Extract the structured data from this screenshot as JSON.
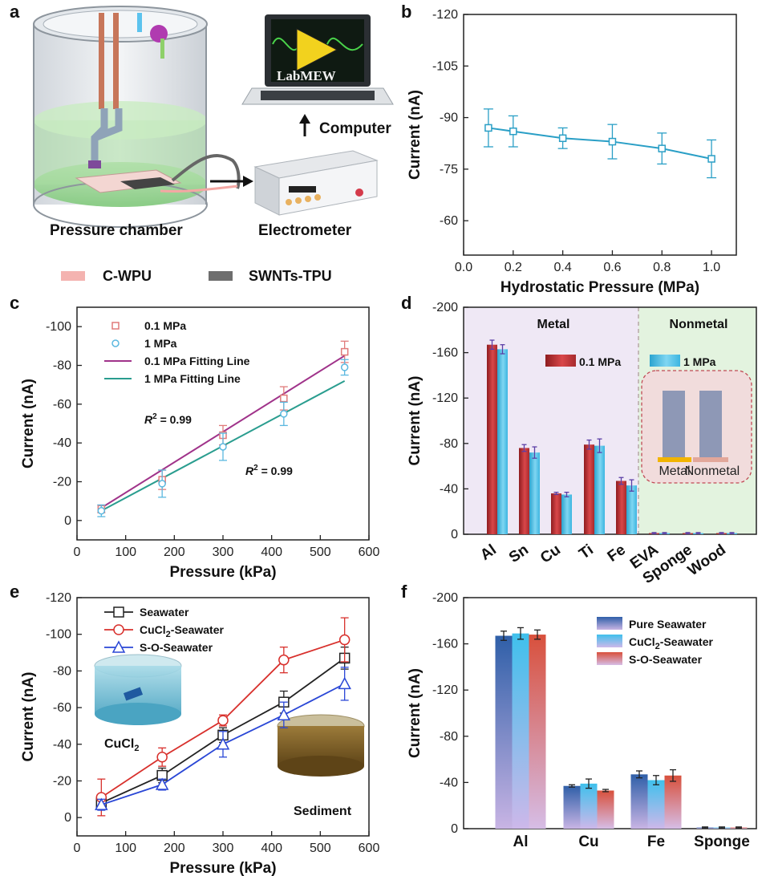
{
  "panel_letters": {
    "a": "a",
    "b": "b",
    "c": "c",
    "d": "d",
    "e": "e",
    "f": "f"
  },
  "schematic": {
    "pressure_chamber": "Pressure chamber",
    "electrometer": "Electrometer",
    "computer": "Computer",
    "labview_logo": "LabMEW",
    "legend": [
      {
        "label": "C-WPU",
        "color": "#f4b3b0"
      },
      {
        "label": "SWNTs-TPU",
        "color": "#6e6e6e"
      }
    ]
  },
  "chart_data": [
    {
      "id": "b",
      "type": "line",
      "xlabel": "Hydrostatic Pressure (MPa)",
      "ylabel": "Current (nA)",
      "xlim": [
        0,
        1.1
      ],
      "ylim": [
        -120,
        -50
      ],
      "xticks": [
        "0.0",
        "0.2",
        "0.4",
        "0.6",
        "0.8",
        "1.0"
      ],
      "yticks": [
        "-120",
        "-105",
        "-90",
        "-75",
        "-60"
      ],
      "color": "#2a9fc6",
      "x": [
        0.1,
        0.2,
        0.4,
        0.6,
        0.8,
        1.0
      ],
      "y": [
        -87,
        -86,
        -84,
        -83,
        -81,
        -78
      ],
      "err": [
        5.5,
        4.5,
        3.0,
        5.0,
        4.5,
        5.5
      ]
    },
    {
      "id": "c",
      "type": "scatter",
      "xlabel": "Pressure (kPa)",
      "ylabel": "Current (nA)",
      "xlim": [
        0,
        600
      ],
      "ylim": [
        -110,
        10
      ],
      "xticks": [
        "0",
        "100",
        "200",
        "300",
        "400",
        "500",
        "600"
      ],
      "yticks": [
        "-100",
        "-80",
        "-60",
        "-40",
        "-20",
        "0"
      ],
      "series": [
        {
          "name": "0.1 MPa",
          "marker": "square",
          "color": "#e07a7a",
          "x": [
            50,
            175,
            300,
            425,
            550
          ],
          "y": [
            -6,
            -21,
            -44,
            -63,
            -87
          ],
          "err": [
            2,
            5,
            5,
            6,
            5.5
          ]
        },
        {
          "name": "1 MPa",
          "marker": "circle",
          "color": "#5bb8df",
          "x": [
            50,
            175,
            300,
            425,
            550
          ],
          "y": [
            -5,
            -19,
            -38,
            -55,
            -79
          ],
          "err": [
            3,
            7,
            7,
            6,
            4
          ]
        }
      ],
      "fits": [
        {
          "name": "0.1 MPa Fitting Line",
          "color": "#a0338a",
          "x": [
            50,
            550
          ],
          "y": [
            -6.5,
            -85
          ]
        },
        {
          "name": "1 MPa Fitting Line",
          "color": "#2a9d8f",
          "x": [
            50,
            550
          ],
          "y": [
            -5,
            -72
          ]
        }
      ],
      "annotations": [
        {
          "label": "R",
          "sup": "2",
          "rest": " = 0.99",
          "color": "#a0338a"
        },
        {
          "label": "R",
          "sup": "2",
          "rest": " = 0.99",
          "color": "#2a9d8f"
        }
      ]
    },
    {
      "id": "d",
      "type": "bar",
      "xlabel": "",
      "ylabel": "Current (nA)",
      "ylim": [
        -200,
        0
      ],
      "yticks": [
        "-200",
        "-160",
        "-120",
        "-80",
        "-40",
        "0"
      ],
      "categories": [
        "Al",
        "Sn",
        "Cu",
        "Ti",
        "Fe",
        "EVA",
        "Sponge",
        "Wood"
      ],
      "groups": [
        {
          "label": "Metal"
        },
        {
          "label": "Nonmetal"
        }
      ],
      "series": [
        {
          "name": "0.1 MPa",
          "color": "#c0393b",
          "values": [
            -167,
            -76,
            -36,
            -79,
            -47,
            -1,
            -1,
            -1
          ],
          "err": [
            4,
            3,
            1,
            4,
            3,
            0.5,
            0.5,
            0.5
          ]
        },
        {
          "name": "1 MPa",
          "color": "#3fb8e0",
          "values": [
            -163,
            -72,
            -35,
            -78,
            -43,
            -1,
            -1,
            -1
          ],
          "err": [
            4,
            5,
            2,
            6,
            5,
            0.5,
            0.5,
            0.5
          ]
        }
      ],
      "inset_labels": [
        "Metal",
        "Nonmetal"
      ]
    },
    {
      "id": "e",
      "type": "line",
      "xlabel": "Pressure (kPa)",
      "ylabel": "Current (nA)",
      "xlim": [
        0,
        600
      ],
      "ylim": [
        -120,
        10
      ],
      "xticks": [
        "0",
        "100",
        "200",
        "300",
        "400",
        "500",
        "600"
      ],
      "yticks": [
        "-120",
        "-100",
        "-80",
        "-60",
        "-40",
        "-20",
        "0"
      ],
      "series": [
        {
          "name": "Seawater",
          "marker": "square",
          "color": "#222222",
          "x": [
            50,
            175,
            300,
            425,
            550
          ],
          "y": [
            -8,
            -23,
            -45,
            -63,
            -87
          ],
          "err": [
            3,
            4,
            4,
            6,
            6
          ]
        },
        {
          "name": "CuCl",
          "sub": "2",
          "name_rest": "-Seawater",
          "marker": "circle",
          "color": "#d8302c",
          "x": [
            50,
            175,
            300,
            425,
            550
          ],
          "y": [
            -11,
            -33,
            -53,
            -86,
            -97
          ],
          "err": [
            10,
            5,
            3,
            7,
            12
          ]
        },
        {
          "name": "S-O-Seawater",
          "marker": "triangle",
          "color": "#2a47d6",
          "x": [
            50,
            175,
            300,
            425,
            550
          ],
          "y": [
            -7,
            -18,
            -40,
            -56,
            -73
          ],
          "err": [
            3,
            3,
            7,
            7,
            9
          ]
        }
      ],
      "photo_labels": [
        {
          "label": "CuCl",
          "sub": "2"
        },
        {
          "label": "Sediment"
        }
      ]
    },
    {
      "id": "f",
      "type": "bar",
      "xlabel": "",
      "ylabel": "Current (nA)",
      "ylim": [
        -200,
        0
      ],
      "yticks": [
        "-200",
        "-160",
        "-120",
        "-80",
        "-40",
        "0"
      ],
      "categories": [
        "Al",
        "Cu",
        "Fe",
        "Sponge"
      ],
      "series": [
        {
          "name": "Pure Seawater",
          "color": "#2f5fa8",
          "values": [
            -167,
            -37,
            -47,
            -1
          ],
          "err": [
            4,
            1,
            3,
            0.5
          ]
        },
        {
          "name": "CuCl",
          "sub": "2",
          "name_rest": "-Seawater",
          "color": "#3fc0ec",
          "values": [
            -169,
            -39,
            -42,
            -1
          ],
          "err": [
            5,
            4,
            4,
            0.5
          ]
        },
        {
          "name": "S-O-Seawater",
          "color": "#d8503c",
          "values": [
            -168,
            -33,
            -46,
            -1
          ],
          "err": [
            4,
            1,
            5,
            0.5
          ]
        }
      ]
    }
  ]
}
